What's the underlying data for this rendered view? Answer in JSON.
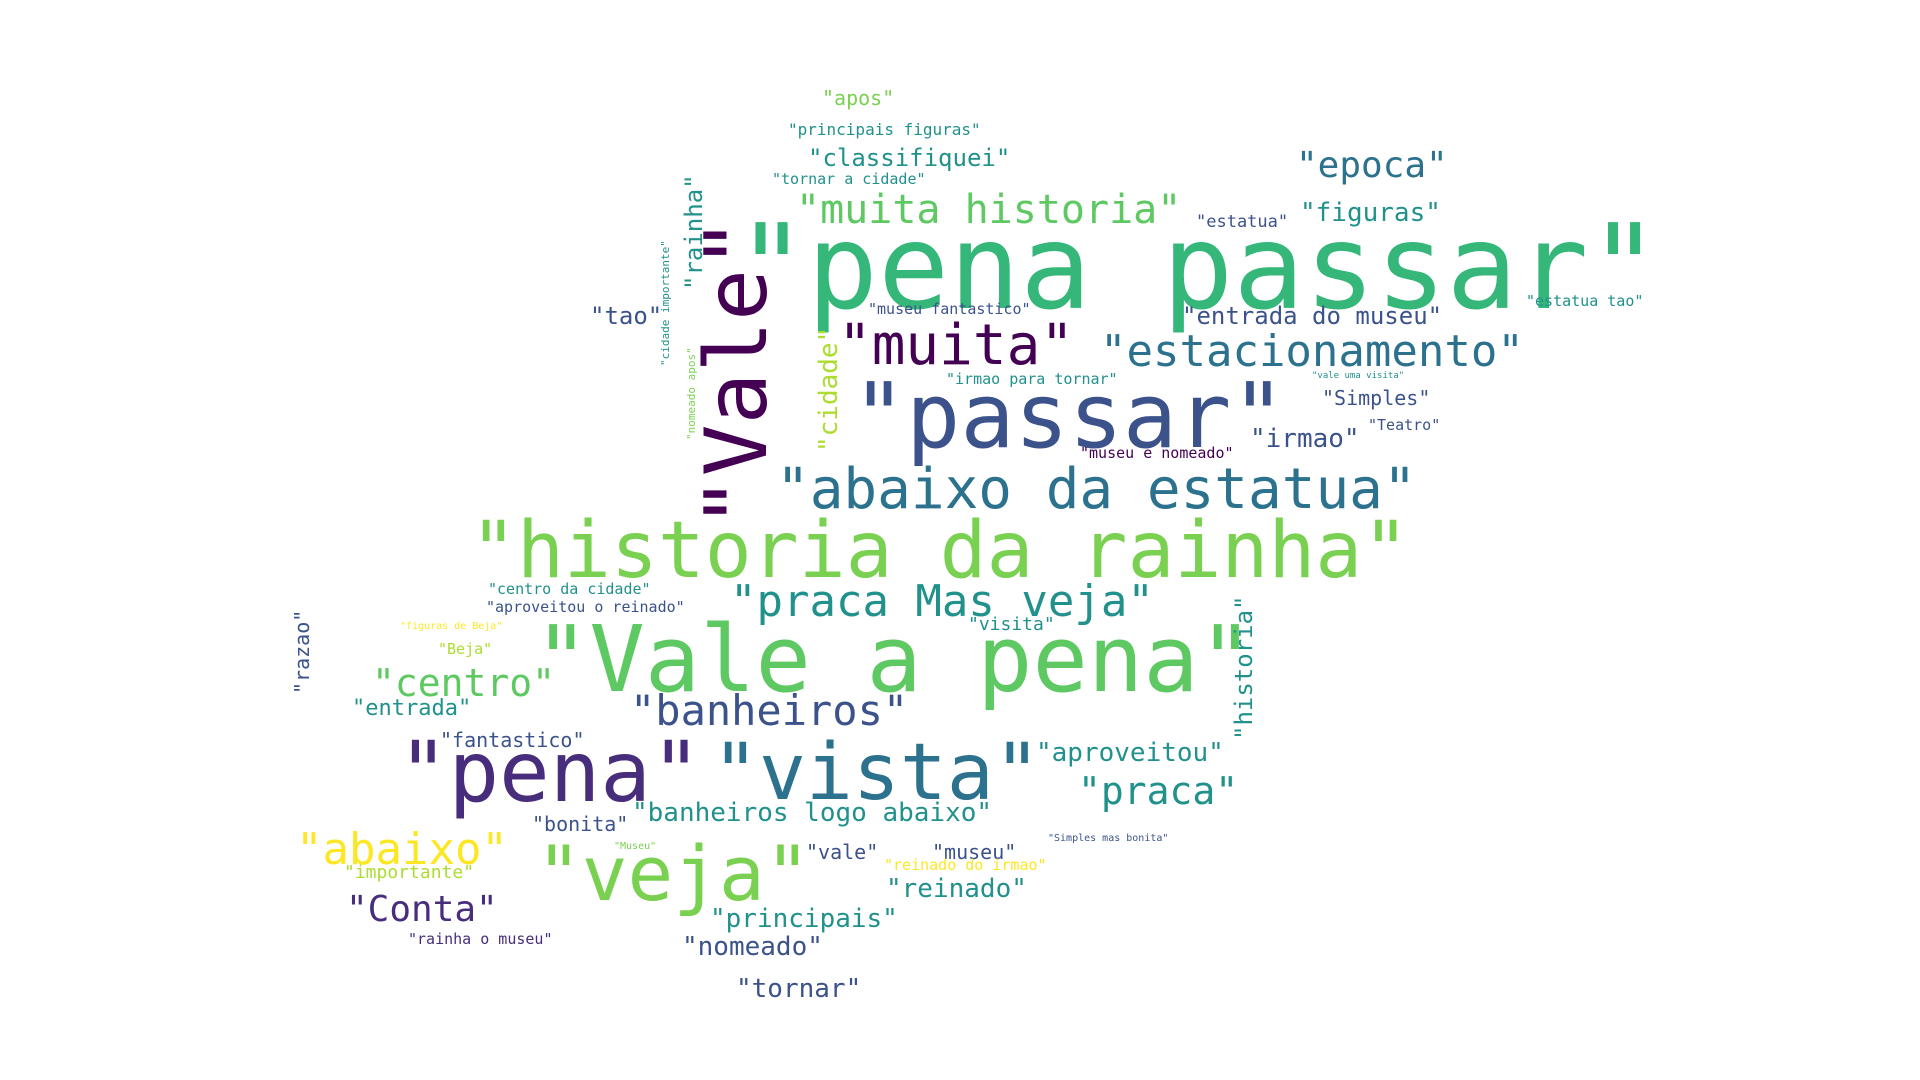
{
  "palette": {
    "c1": "#440154",
    "c2": "#472d7b",
    "c3": "#3b528b",
    "c4": "#2c728e",
    "c5": "#21918c",
    "c6": "#28ae80",
    "c7": "#5ec962",
    "c8": "#addc30",
    "c9": "#fde725",
    "c10": "#7ad151",
    "c11": "#3f4a8a"
  },
  "words": [
    {
      "text": "\"pena passar\"",
      "color": "#35b779"
    },
    {
      "text": "\"Vale\"",
      "color": "#440154"
    },
    {
      "text": "\"passar\"",
      "color": "#3b528b"
    },
    {
      "text": "\"muita\"",
      "color": "#440154"
    },
    {
      "text": "\"historia da rainha\"",
      "color": "#7ad151"
    },
    {
      "text": "\"Vale a pena\"",
      "color": "#5ec962"
    },
    {
      "text": "\"abaixo da estatua\"",
      "color": "#2c728e"
    },
    {
      "text": "\"estacionamento\"",
      "color": "#2c728e"
    },
    {
      "text": "\"pena\"",
      "color": "#472d7b"
    },
    {
      "text": "\"vista\"",
      "color": "#2c728e"
    },
    {
      "text": "\"veja\"",
      "color": "#7ad151"
    },
    {
      "text": "\"muita historia\"",
      "color": "#5ec962"
    },
    {
      "text": "\"praca Mas veja\"",
      "color": "#21918c"
    },
    {
      "text": "\"epoca\"",
      "color": "#2c728e"
    },
    {
      "text": "\"banheiros\"",
      "color": "#3b528b"
    },
    {
      "text": "\"abaixo\"",
      "color": "#fde725"
    },
    {
      "text": "\"centro\"",
      "color": "#5ec962"
    },
    {
      "text": "\"praca\"",
      "color": "#21918c"
    },
    {
      "text": "\"Conta\"",
      "color": "#472d7b"
    },
    {
      "text": "\"classifiquei\"",
      "color": "#21918c"
    },
    {
      "text": "\"figuras\"",
      "color": "#21918c"
    },
    {
      "text": "\"entrada do museu\"",
      "color": "#3b528b"
    },
    {
      "text": "\"banheiros logo abaixo\"",
      "color": "#21918c"
    },
    {
      "text": "\"aproveitou\"",
      "color": "#21918c"
    },
    {
      "text": "\"reinado\"",
      "color": "#21918c"
    },
    {
      "text": "\"principais\"",
      "color": "#21918c"
    },
    {
      "text": "\"nomeado\"",
      "color": "#3b528b"
    },
    {
      "text": "\"tornar\"",
      "color": "#3b528b"
    },
    {
      "text": "\"irmao\"",
      "color": "#3b528b"
    },
    {
      "text": "\"rainha\"",
      "color": "#21918c"
    },
    {
      "text": "\"cidade\"",
      "color": "#addc30"
    },
    {
      "text": "\"historia\"",
      "color": "#21918c"
    },
    {
      "text": "\"tao\"",
      "color": "#3b528b"
    },
    {
      "text": "\"apos\"",
      "color": "#7ad151"
    },
    {
      "text": "\"entrada\"",
      "color": "#21918c"
    },
    {
      "text": "\"fantastico\"",
      "color": "#3b528b"
    },
    {
      "text": "\"Simples\"",
      "color": "#3b528b"
    },
    {
      "text": "\"vale\"",
      "color": "#3b528b"
    },
    {
      "text": "\"museu\"",
      "color": "#3b528b"
    },
    {
      "text": "\"bonita\"",
      "color": "#3b528b"
    },
    {
      "text": "\"razao\"",
      "color": "#3b528b"
    },
    {
      "text": "\"importante\"",
      "color": "#addc30"
    },
    {
      "text": "\"visita\"",
      "color": "#21918c"
    },
    {
      "text": "\"estatua\"",
      "color": "#3b528b"
    },
    {
      "text": "\"principais figuras\"",
      "color": "#21918c"
    },
    {
      "text": "\"tornar a cidade\"",
      "color": "#21918c"
    },
    {
      "text": "\"museu fantastico\"",
      "color": "#3b528b"
    },
    {
      "text": "\"irmao para tornar\"",
      "color": "#21918c"
    },
    {
      "text": "\"museu e nomeado\"",
      "color": "#440154"
    },
    {
      "text": "\"Teatro\"",
      "color": "#3b528b"
    },
    {
      "text": "\"estatua tao\"",
      "color": "#21918c"
    },
    {
      "text": "\"centro da cidade\"",
      "color": "#21918c"
    },
    {
      "text": "\"aproveitou o reinado\"",
      "color": "#3b528b"
    },
    {
      "text": "\"Beja\"",
      "color": "#addc30"
    },
    {
      "text": "\"rainha o museu\"",
      "color": "#472d7b"
    },
    {
      "text": "\"reinado do irmao\"",
      "color": "#fde725"
    },
    {
      "text": "\"cidade importante\"",
      "color": "#21918c"
    },
    {
      "text": "\"nomeado apos\"",
      "color": "#7ad151"
    },
    {
      "text": "\"figuras de Beja\"",
      "color": "#fde725"
    },
    {
      "text": "\"Museu\"",
      "color": "#7ad151"
    },
    {
      "text": "\"Simples mas bonita\"",
      "color": "#3b528b"
    },
    {
      "text": "\"vale uma visita\"",
      "color": "#21918c"
    }
  ]
}
